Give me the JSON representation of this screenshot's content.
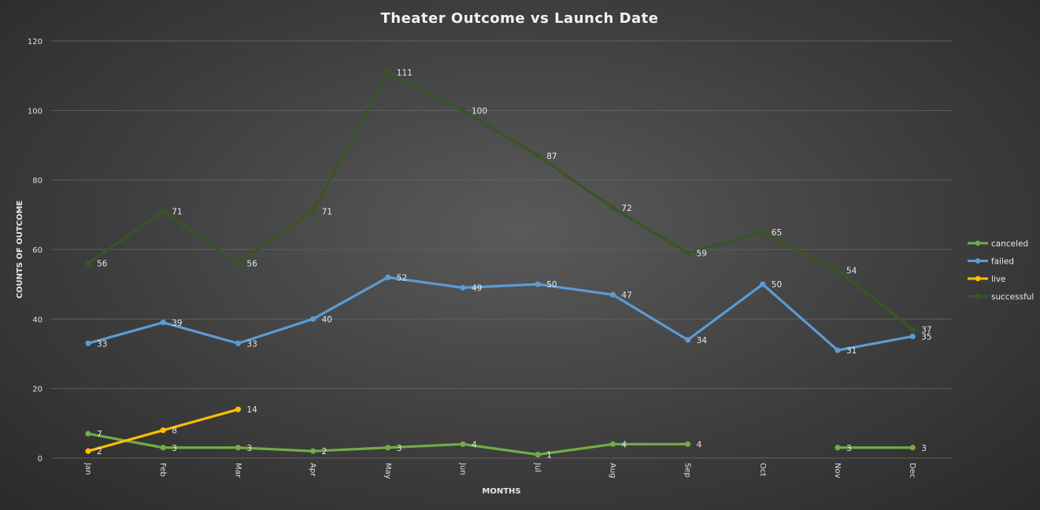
{
  "chart_data": {
    "type": "line",
    "title": "Theater Outcome vs Launch Date",
    "xlabel": "MONTHS",
    "ylabel": "COUNTS OF OUTCOME",
    "categories": [
      "Jan",
      "Feb",
      "Mar",
      "Apr",
      "May",
      "Jun",
      "Jul",
      "Aug",
      "Sep",
      "Oct",
      "Nov",
      "Dec"
    ],
    "ylim": [
      0,
      120
    ],
    "yticks": [
      0,
      20,
      40,
      60,
      80,
      100,
      120
    ],
    "grid": true,
    "legend_position": "right",
    "series": [
      {
        "name": "canceled",
        "color": "#70ad47",
        "values": [
          7,
          3,
          3,
          2,
          3,
          4,
          1,
          4,
          4,
          null,
          3,
          3
        ]
      },
      {
        "name": "failed",
        "color": "#5b9bd5",
        "values": [
          33,
          39,
          33,
          40,
          52,
          49,
          50,
          47,
          34,
          50,
          31,
          35
        ]
      },
      {
        "name": "live",
        "color": "#ffc000",
        "values": [
          2,
          8,
          14,
          null,
          null,
          null,
          null,
          null,
          null,
          null,
          null,
          null
        ]
      },
      {
        "name": "successful",
        "color": "#375623",
        "values": [
          56,
          71,
          56,
          71,
          111,
          100,
          87,
          72,
          59,
          65,
          54,
          37
        ]
      }
    ]
  }
}
